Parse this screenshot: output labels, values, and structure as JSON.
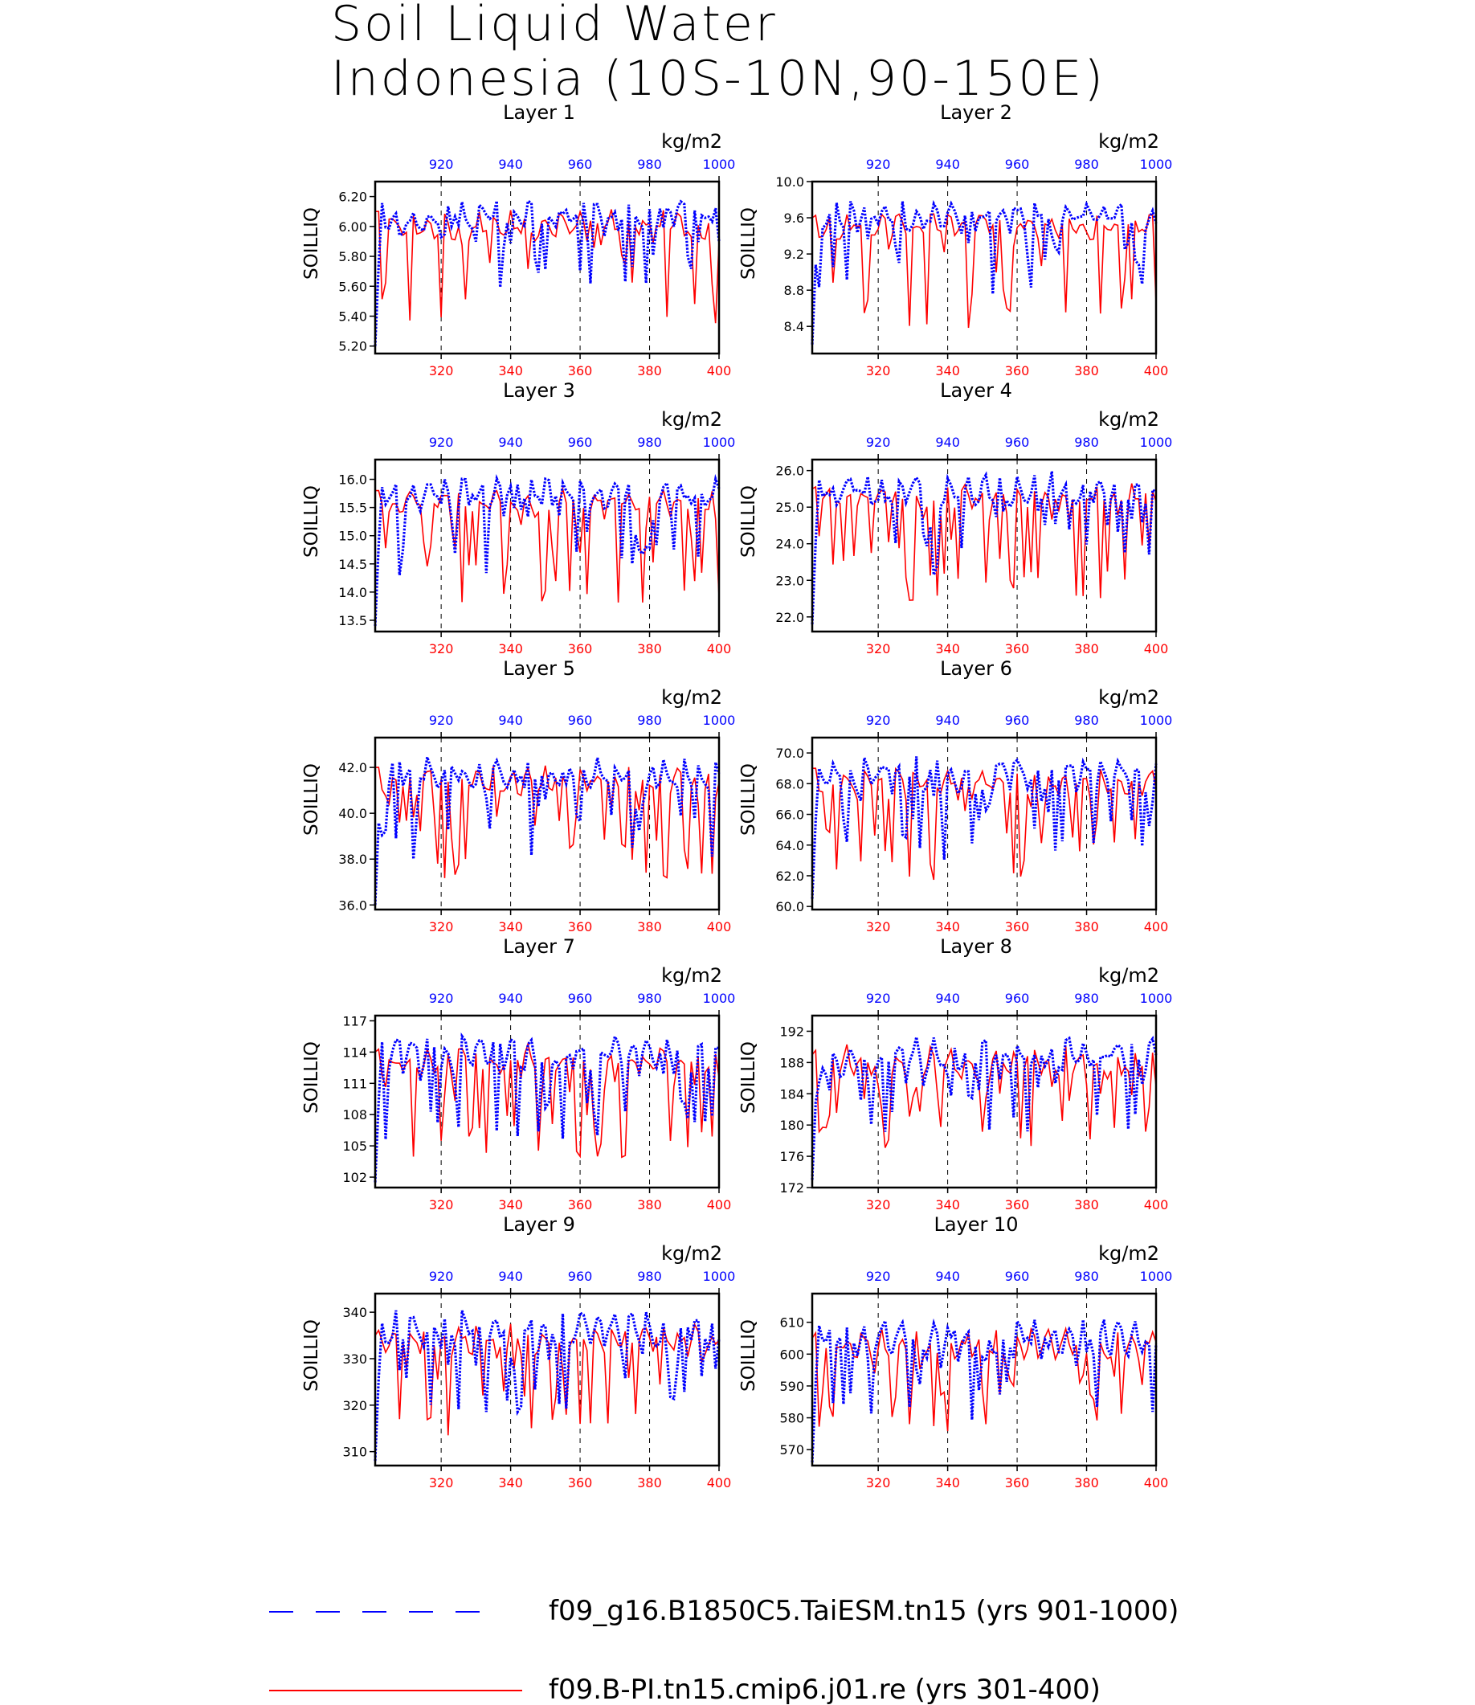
{
  "title": {
    "line1": "Soil Liquid Water",
    "line2": "Indonesia (10S-10N,90-150E)"
  },
  "units": "kg/m2",
  "ylabel": "SOILLIQ",
  "colors": {
    "blue": "#0000ff",
    "red": "#ff0000",
    "axis": "#000000"
  },
  "legend": [
    {
      "label": "f09_g16.B1850C5.TaiESM.tn15 (yrs 901-1000)",
      "color": "#0000ff",
      "style": "dashed"
    },
    {
      "label": "f09.B-PI.tn15.cmip6.j01.re (yrs 301-400)",
      "color": "#ff0000",
      "style": "solid"
    }
  ],
  "chart_data": [
    {
      "type": "line",
      "title": "Layer 1",
      "ylim": [
        5.15,
        6.3
      ],
      "yticks": [
        "5.20",
        "5.40",
        "5.60",
        "5.80",
        "6.00",
        "6.20"
      ],
      "ytick_values": [
        5.2,
        5.4,
        5.6,
        5.8,
        6.0,
        6.2
      ],
      "xlim_bottom": [
        301,
        400
      ],
      "xticks_bottom": [
        320,
        340,
        360,
        380,
        400
      ],
      "xlim_top": [
        901,
        1000
      ],
      "xticks_top": [
        920,
        940,
        960,
        980,
        1000
      ],
      "blue": {
        "base": 6.18,
        "amp": 0.22,
        "dip": 0.6,
        "start": 5.2
      },
      "red": {
        "base": 6.1,
        "amp": 0.2,
        "dip": 0.75,
        "start": 6.1
      }
    },
    {
      "type": "line",
      "title": "Layer 2",
      "ylim": [
        8.1,
        10.0
      ],
      "yticks": [
        "8.4",
        "8.8",
        "9.2",
        "9.6",
        "10.0"
      ],
      "ytick_values": [
        8.4,
        8.8,
        9.2,
        9.6,
        10.0
      ],
      "xlim_bottom": [
        301,
        400
      ],
      "xticks_bottom": [
        320,
        340,
        360,
        380,
        400
      ],
      "xlim_top": [
        901,
        1000
      ],
      "xticks_top": [
        920,
        940,
        960,
        980,
        1000
      ],
      "blue": {
        "base": 9.8,
        "amp": 0.35,
        "dip": 1.1,
        "start": 8.2
      },
      "red": {
        "base": 9.65,
        "amp": 0.3,
        "dip": 1.3,
        "start": 9.6
      }
    },
    {
      "type": "line",
      "title": "Layer 3",
      "ylim": [
        13.3,
        16.35
      ],
      "yticks": [
        "13.5",
        "14.0",
        "14.5",
        "15.0",
        "15.5",
        "16.0"
      ],
      "ytick_values": [
        13.5,
        14.0,
        14.5,
        15.0,
        15.5,
        16.0
      ],
      "xlim_bottom": [
        301,
        400
      ],
      "xticks_bottom": [
        320,
        340,
        360,
        380,
        400
      ],
      "xlim_top": [
        901,
        1000
      ],
      "xticks_top": [
        920,
        940,
        960,
        980,
        1000
      ],
      "blue": {
        "base": 16.0,
        "amp": 0.55,
        "dip": 1.7,
        "start": 13.4
      },
      "red": {
        "base": 15.8,
        "amp": 0.45,
        "dip": 2.0,
        "start": 15.8
      }
    },
    {
      "type": "line",
      "title": "Layer 4",
      "ylim": [
        21.6,
        26.3
      ],
      "yticks": [
        "22.0",
        "23.0",
        "24.0",
        "25.0",
        "26.0"
      ],
      "ytick_values": [
        22,
        23,
        24,
        25,
        26
      ],
      "xlim_bottom": [
        301,
        400
      ],
      "xticks_bottom": [
        320,
        340,
        360,
        380,
        400
      ],
      "xlim_top": [
        901,
        1000
      ],
      "xticks_top": [
        920,
        940,
        960,
        980,
        1000
      ],
      "blue": {
        "base": 25.9,
        "amp": 0.9,
        "dip": 2.8,
        "start": 21.8
      },
      "red": {
        "base": 25.6,
        "amp": 0.7,
        "dip": 3.2,
        "start": 25.5
      }
    },
    {
      "type": "line",
      "title": "Layer 5",
      "ylim": [
        35.8,
        43.3
      ],
      "yticks": [
        "36.0",
        "38.0",
        "40.0",
        "42.0"
      ],
      "ytick_values": [
        36,
        38,
        40,
        42
      ],
      "xlim_bottom": [
        301,
        400
      ],
      "xticks_bottom": [
        320,
        340,
        360,
        380,
        400
      ],
      "xlim_top": [
        901,
        1000
      ],
      "xticks_top": [
        920,
        940,
        960,
        980,
        1000
      ],
      "blue": {
        "base": 42.5,
        "amp": 1.5,
        "dip": 4.5,
        "start": 36.0
      },
      "red": {
        "base": 42.0,
        "amp": 1.2,
        "dip": 5.0,
        "start": 42.0
      }
    },
    {
      "type": "line",
      "title": "Layer 6",
      "ylim": [
        59.8,
        71.0
      ],
      "yticks": [
        "60.0",
        "62.0",
        "64.0",
        "66.0",
        "68.0",
        "70.0"
      ],
      "ytick_values": [
        60,
        62,
        64,
        66,
        68,
        70
      ],
      "xlim_bottom": [
        301,
        400
      ],
      "xticks_bottom": [
        320,
        340,
        360,
        380,
        400
      ],
      "xlim_top": [
        901,
        1000
      ],
      "xticks_top": [
        920,
        940,
        960,
        980,
        1000
      ],
      "blue": {
        "base": 69.8,
        "amp": 2.3,
        "dip": 6.8,
        "start": 60.5
      },
      "red": {
        "base": 69.0,
        "amp": 2.0,
        "dip": 7.5,
        "start": 69.0
      }
    },
    {
      "type": "line",
      "title": "Layer 7",
      "ylim": [
        101,
        117.5
      ],
      "yticks": [
        "102",
        "105",
        "108",
        "111",
        "114",
        "117"
      ],
      "ytick_values": [
        102,
        105,
        108,
        111,
        114,
        117
      ],
      "xlim_bottom": [
        301,
        400
      ],
      "xticks_bottom": [
        320,
        340,
        360,
        380,
        400
      ],
      "xlim_top": [
        901,
        1000
      ],
      "xticks_top": [
        920,
        940,
        960,
        980,
        1000
      ],
      "blue": {
        "base": 115.5,
        "amp": 3.5,
        "dip": 10,
        "start": 101.5
      },
      "red": {
        "base": 114.5,
        "amp": 3.0,
        "dip": 11,
        "start": 114
      }
    },
    {
      "type": "line",
      "title": "Layer 8",
      "ylim": [
        172,
        194
      ],
      "yticks": [
        "172",
        "176",
        "180",
        "184",
        "188",
        "192"
      ],
      "ytick_values": [
        172,
        176,
        180,
        184,
        188,
        192
      ],
      "xlim_bottom": [
        301,
        400
      ],
      "xticks_bottom": [
        320,
        340,
        360,
        380,
        400
      ],
      "xlim_top": [
        901,
        1000
      ],
      "xticks_top": [
        920,
        940,
        960,
        980,
        1000
      ],
      "blue": {
        "base": 191,
        "amp": 4.5,
        "dip": 12,
        "start": 173
      },
      "red": {
        "base": 190,
        "amp": 4.0,
        "dip": 13,
        "start": 189
      }
    },
    {
      "type": "line",
      "title": "Layer 9",
      "ylim": [
        307,
        344
      ],
      "yticks": [
        "310",
        "320",
        "330",
        "340"
      ],
      "ytick_values": [
        310,
        320,
        330,
        340
      ],
      "xlim_bottom": [
        301,
        400
      ],
      "xticks_bottom": [
        320,
        340,
        360,
        380,
        400
      ],
      "xlim_top": [
        901,
        1000
      ],
      "xticks_top": [
        920,
        940,
        960,
        980,
        1000
      ],
      "blue": {
        "base": 340,
        "amp": 8,
        "dip": 22,
        "start": 308
      },
      "red": {
        "base": 337,
        "amp": 6,
        "dip": 24,
        "start": 335
      }
    },
    {
      "type": "line",
      "title": "Layer 10",
      "ylim": [
        565,
        619
      ],
      "yticks": [
        "570",
        "580",
        "590",
        "600",
        "610"
      ],
      "ytick_values": [
        570,
        580,
        590,
        600,
        610
      ],
      "xlim_bottom": [
        301,
        400
      ],
      "xticks_bottom": [
        320,
        340,
        360,
        380,
        400
      ],
      "xlim_top": [
        901,
        1000
      ],
      "xticks_top": [
        920,
        940,
        960,
        980,
        1000
      ],
      "blue": {
        "base": 611,
        "amp": 12,
        "dip": 32,
        "start": 566
      },
      "red": {
        "base": 608,
        "amp": 10,
        "dip": 34,
        "start": 605
      }
    }
  ]
}
